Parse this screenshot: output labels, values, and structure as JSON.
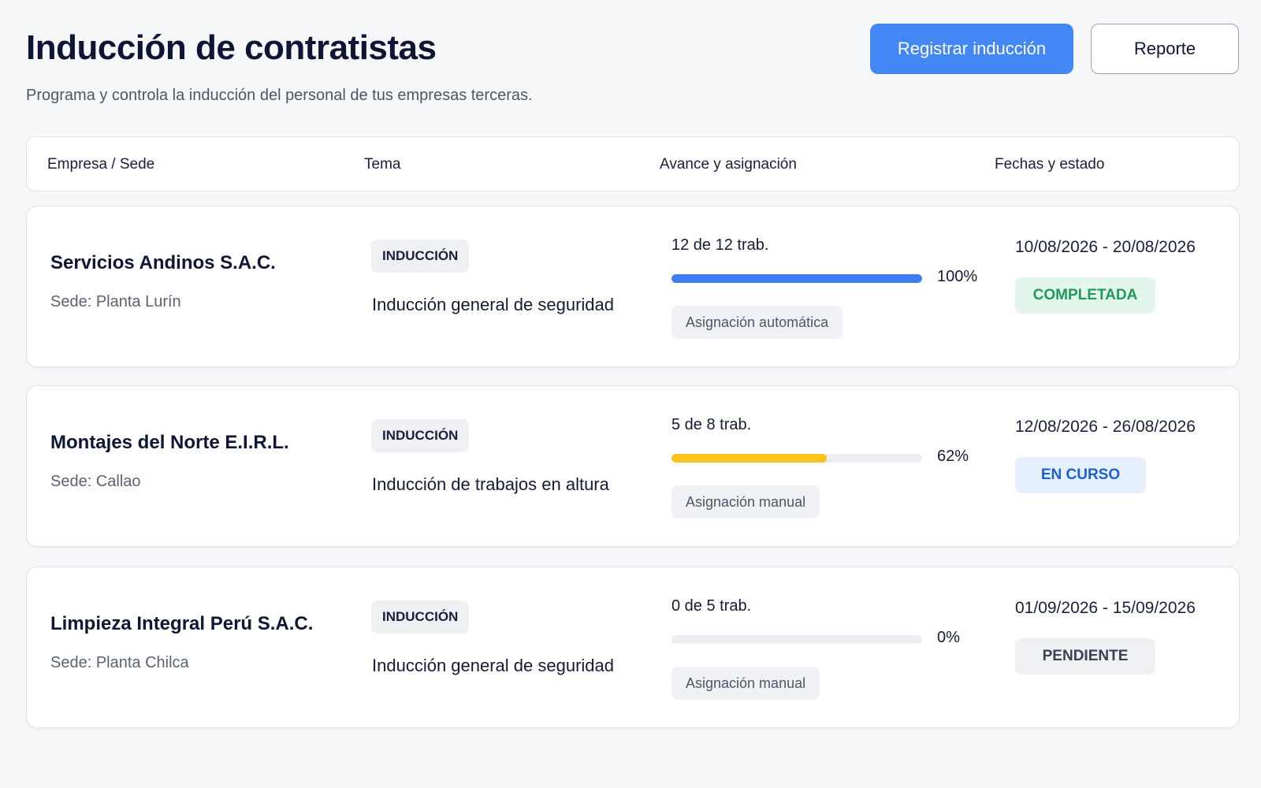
{
  "header": {
    "title": "Inducción de contratistas",
    "subtitle": "Programa y controla la inducción del personal de tus empresas terceras.",
    "primary_button": "Registrar inducción",
    "secondary_button": "Reporte"
  },
  "table": {
    "columns": [
      "Empresa / Sede",
      "Tema",
      "Avance y asignación",
      "Fechas y estado"
    ],
    "rows": [
      {
        "company": "Servicios Andinos S.A.C.",
        "sede": "Sede: Planta Lurín",
        "tag": "INDUCCIÓN",
        "tema": "Inducción general de seguridad",
        "count": "12 de 12 trab.",
        "progress": 100,
        "progress_label": "100%",
        "progress_color": "#3f7ef0",
        "assignment": "Asignación automática",
        "dates": "10/08/2026 - 20/08/2026",
        "status": "COMPLETADA",
        "status_bg": "#e2f6ec",
        "status_color": "#1f9a5a"
      },
      {
        "company": "Montajes del Norte E.I.R.L.",
        "sede": "Sede: Callao",
        "tag": "INDUCCIÓN",
        "tema": "Inducción de trabajos en altura",
        "count": "5 de 8 trab.",
        "progress": 62,
        "progress_label": "62%",
        "progress_color": "#fbc21a",
        "assignment": "Asignación manual",
        "dates": "12/08/2026 - 26/08/2026",
        "status": "EN CURSO",
        "status_bg": "#e6effd",
        "status_color": "#1d5fd1"
      },
      {
        "company": "Limpieza Integral Perú S.A.C.",
        "sede": "Sede: Planta Chilca",
        "tag": "INDUCCIÓN",
        "tema": "Inducción general de seguridad",
        "count": "0 de 5 trab.",
        "progress": 0,
        "progress_label": "0%",
        "progress_color": "#3f7ef0",
        "assignment": "Asignación manual",
        "dates": "01/09/2026 - 15/09/2026",
        "status": "PENDIENTE",
        "status_bg": "#eef0f3",
        "status_color": "#3b4150"
      }
    ]
  }
}
